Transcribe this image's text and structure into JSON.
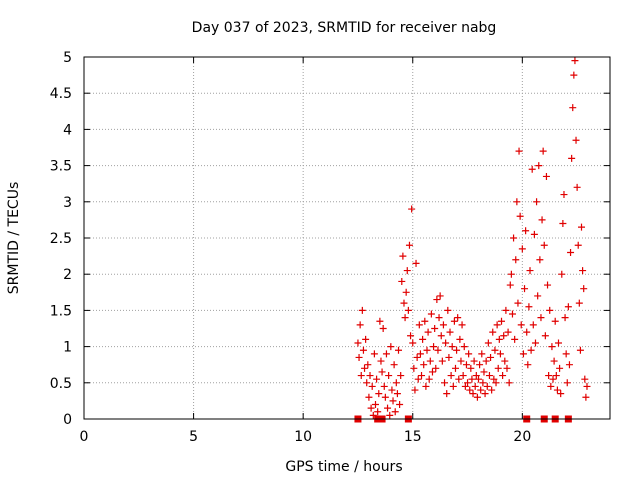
{
  "chart_data": {
    "type": "scatter",
    "title": "Day 037 of 2023, SRMTID for receiver nabg",
    "xlabel": "GPS time / hours",
    "ylabel": "SRMTID / TECUs",
    "xlim": [
      0,
      24
    ],
    "ylim": [
      0,
      5
    ],
    "x_ticks": [
      "0",
      "5",
      "10",
      "15",
      "20"
    ],
    "y_ticks": [
      "0",
      "0.5",
      "1",
      "1.5",
      "2",
      "2.5",
      "3",
      "3.5",
      "4",
      "4.5",
      "5"
    ],
    "grid": true,
    "marker_color": "#e00000",
    "series": [
      {
        "marker": "plus",
        "points": [
          [
            12.5,
            1.05
          ],
          [
            12.55,
            0.85
          ],
          [
            12.6,
            1.3
          ],
          [
            12.65,
            0.6
          ],
          [
            12.7,
            1.5
          ],
          [
            12.75,
            0.95
          ],
          [
            12.8,
            0.7
          ],
          [
            12.85,
            1.1
          ],
          [
            12.9,
            0.5
          ],
          [
            12.95,
            0.75
          ],
          [
            13.0,
            0.3
          ],
          [
            13.05,
            0.6
          ],
          [
            13.1,
            0.15
          ],
          [
            13.15,
            0.45
          ],
          [
            13.2,
            0.05
          ],
          [
            13.25,
            0.9
          ],
          [
            13.3,
            0.2
          ],
          [
            13.35,
            0.55
          ],
          [
            13.4,
            0.1
          ],
          [
            13.45,
            0.35
          ],
          [
            13.5,
            1.35
          ],
          [
            13.55,
            0.8
          ],
          [
            13.6,
            0.65
          ],
          [
            13.65,
            1.25
          ],
          [
            13.7,
            0.45
          ],
          [
            13.75,
            0.3
          ],
          [
            13.8,
            0.9
          ],
          [
            13.85,
            0.15
          ],
          [
            13.9,
            0.6
          ],
          [
            13.95,
            0.05
          ],
          [
            14.0,
            1.0
          ],
          [
            14.05,
            0.4
          ],
          [
            14.1,
            0.25
          ],
          [
            14.15,
            0.75
          ],
          [
            14.2,
            0.1
          ],
          [
            14.25,
            0.5
          ],
          [
            14.3,
            0.35
          ],
          [
            14.35,
            0.95
          ],
          [
            14.4,
            0.2
          ],
          [
            14.45,
            0.6
          ],
          [
            14.5,
            1.9
          ],
          [
            14.55,
            2.25
          ],
          [
            14.6,
            1.6
          ],
          [
            14.65,
            1.4
          ],
          [
            14.7,
            1.75
          ],
          [
            14.75,
            2.05
          ],
          [
            14.8,
            1.5
          ],
          [
            14.85,
            2.4
          ],
          [
            14.9,
            1.15
          ],
          [
            14.95,
            2.9
          ],
          [
            15.0,
            1.05
          ],
          [
            15.05,
            0.7
          ],
          [
            15.1,
            0.4
          ],
          [
            15.15,
            2.15
          ],
          [
            15.2,
            0.85
          ],
          [
            15.25,
            0.55
          ],
          [
            15.3,
            1.3
          ],
          [
            15.35,
            0.9
          ],
          [
            15.4,
            0.6
          ],
          [
            15.45,
            1.1
          ],
          [
            15.5,
            0.75
          ],
          [
            15.55,
            1.35
          ],
          [
            15.6,
            0.45
          ],
          [
            15.65,
            0.95
          ],
          [
            15.7,
            1.2
          ],
          [
            15.75,
            0.55
          ],
          [
            15.8,
            0.8
          ],
          [
            15.85,
            1.45
          ],
          [
            15.9,
            0.65
          ],
          [
            15.95,
            1.0
          ],
          [
            16.0,
            1.25
          ],
          [
            16.05,
            0.7
          ],
          [
            16.1,
            1.65
          ],
          [
            16.15,
            0.95
          ],
          [
            16.2,
            1.4
          ],
          [
            16.25,
            1.7
          ],
          [
            16.3,
            1.15
          ],
          [
            16.35,
            0.8
          ],
          [
            16.4,
            1.3
          ],
          [
            16.45,
            0.5
          ],
          [
            16.5,
            1.05
          ],
          [
            16.55,
            0.35
          ],
          [
            16.6,
            1.5
          ],
          [
            16.65,
            0.85
          ],
          [
            16.7,
            1.2
          ],
          [
            16.75,
            0.6
          ],
          [
            16.8,
            1.0
          ],
          [
            16.85,
            0.45
          ],
          [
            16.9,
            1.35
          ],
          [
            16.95,
            0.7
          ],
          [
            17.0,
            0.95
          ],
          [
            17.05,
            1.4
          ],
          [
            17.1,
            0.55
          ],
          [
            17.15,
            1.1
          ],
          [
            17.2,
            0.8
          ],
          [
            17.25,
            1.3
          ],
          [
            17.3,
            0.6
          ],
          [
            17.35,
            1.0
          ],
          [
            17.4,
            0.45
          ],
          [
            17.45,
            0.75
          ],
          [
            17.5,
            0.5
          ],
          [
            17.55,
            0.9
          ],
          [
            17.6,
            0.4
          ],
          [
            17.65,
            0.7
          ],
          [
            17.7,
            0.55
          ],
          [
            17.75,
            0.35
          ],
          [
            17.8,
            0.8
          ],
          [
            17.85,
            0.45
          ],
          [
            17.9,
            0.6
          ],
          [
            17.95,
            0.3
          ],
          [
            18.0,
            0.55
          ],
          [
            18.05,
            0.75
          ],
          [
            18.1,
            0.4
          ],
          [
            18.15,
            0.9
          ],
          [
            18.2,
            0.5
          ],
          [
            18.25,
            0.65
          ],
          [
            18.3,
            0.35
          ],
          [
            18.35,
            0.8
          ],
          [
            18.4,
            0.45
          ],
          [
            18.45,
            1.05
          ],
          [
            18.5,
            0.6
          ],
          [
            18.55,
            0.85
          ],
          [
            18.6,
            0.4
          ],
          [
            18.65,
            1.2
          ],
          [
            18.7,
            0.55
          ],
          [
            18.75,
            0.95
          ],
          [
            18.8,
            0.5
          ],
          [
            18.85,
            1.3
          ],
          [
            18.9,
            0.7
          ],
          [
            18.95,
            1.1
          ],
          [
            19.0,
            0.9
          ],
          [
            19.05,
            1.35
          ],
          [
            19.1,
            0.6
          ],
          [
            19.15,
            1.15
          ],
          [
            19.2,
            0.8
          ],
          [
            19.25,
            1.5
          ],
          [
            19.3,
            0.7
          ],
          [
            19.35,
            1.2
          ],
          [
            19.4,
            0.5
          ],
          [
            19.45,
            1.85
          ],
          [
            19.5,
            2.0
          ],
          [
            19.55,
            1.45
          ],
          [
            19.6,
            2.5
          ],
          [
            19.65,
            1.1
          ],
          [
            19.7,
            2.2
          ],
          [
            19.75,
            3.0
          ],
          [
            19.8,
            1.6
          ],
          [
            19.85,
            3.7
          ],
          [
            19.9,
            2.8
          ],
          [
            19.95,
            1.3
          ],
          [
            20.0,
            2.35
          ],
          [
            20.05,
            0.9
          ],
          [
            20.1,
            1.8
          ],
          [
            20.15,
            2.6
          ],
          [
            20.2,
            1.2
          ],
          [
            20.25,
            0.75
          ],
          [
            20.3,
            1.55
          ],
          [
            20.35,
            2.05
          ],
          [
            20.4,
            0.95
          ],
          [
            20.45,
            3.45
          ],
          [
            20.5,
            1.3
          ],
          [
            20.55,
            2.55
          ],
          [
            20.6,
            1.05
          ],
          [
            20.65,
            3.0
          ],
          [
            20.7,
            1.7
          ],
          [
            20.75,
            3.5
          ],
          [
            20.8,
            2.2
          ],
          [
            20.85,
            1.4
          ],
          [
            20.9,
            2.75
          ],
          [
            20.95,
            3.7
          ],
          [
            21.0,
            2.4
          ],
          [
            21.05,
            1.15
          ],
          [
            21.1,
            3.35
          ],
          [
            21.15,
            1.85
          ],
          [
            21.2,
            0.6
          ],
          [
            21.25,
            1.5
          ],
          [
            21.3,
            0.45
          ],
          [
            21.35,
            1.0
          ],
          [
            21.4,
            0.55
          ],
          [
            21.45,
            0.8
          ],
          [
            21.5,
            1.35
          ],
          [
            21.55,
            0.6
          ],
          [
            21.6,
            0.4
          ],
          [
            21.65,
            1.05
          ],
          [
            21.7,
            0.7
          ],
          [
            21.75,
            0.35
          ],
          [
            21.8,
            2.0
          ],
          [
            21.85,
            2.7
          ],
          [
            21.9,
            3.1
          ],
          [
            21.95,
            1.4
          ],
          [
            22.0,
            0.9
          ],
          [
            22.05,
            0.5
          ],
          [
            22.1,
            1.55
          ],
          [
            22.15,
            0.75
          ],
          [
            22.2,
            2.3
          ],
          [
            22.25,
            3.6
          ],
          [
            22.3,
            4.3
          ],
          [
            22.35,
            4.75
          ],
          [
            22.4,
            4.95
          ],
          [
            22.45,
            3.85
          ],
          [
            22.5,
            3.2
          ],
          [
            22.55,
            2.4
          ],
          [
            22.6,
            1.6
          ],
          [
            22.65,
            0.95
          ],
          [
            22.7,
            2.65
          ],
          [
            22.75,
            2.05
          ],
          [
            22.8,
            1.8
          ],
          [
            22.85,
            0.55
          ],
          [
            22.9,
            0.3
          ],
          [
            22.95,
            0.45
          ]
        ]
      },
      {
        "marker": "square",
        "points": [
          [
            12.5,
            0.0
          ],
          [
            13.4,
            0.0
          ],
          [
            13.6,
            0.0
          ],
          [
            14.8,
            0.0
          ],
          [
            20.2,
            0.0
          ],
          [
            21.0,
            0.0
          ],
          [
            21.5,
            0.0
          ],
          [
            22.1,
            0.0
          ]
        ]
      }
    ]
  }
}
